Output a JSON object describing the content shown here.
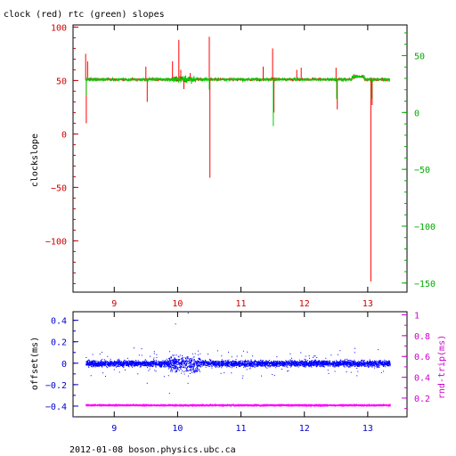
{
  "chart_data": [
    {
      "type": "line",
      "title": "clock (red) rtc (green) slopes",
      "xlabel": "",
      "ylabel_left": "clockslope",
      "ylabel_right": "",
      "xlim": [
        8.35,
        13.62
      ],
      "ylim_left": [
        -148,
        102
      ],
      "ylim_right": [
        -158,
        77
      ],
      "x_ticks": [
        9,
        10,
        11,
        12,
        13
      ],
      "y_ticks_left": [
        100,
        50,
        0,
        -50,
        -100
      ],
      "y_ticks_right": [
        50,
        0,
        -50,
        -100,
        -150
      ],
      "x_tick_color": "#cc0000",
      "left_axis_color": "#cc0000",
      "right_axis_color": "#00aa00",
      "series": [
        {
          "color": "#ff0000",
          "axis": "left",
          "baseline": 51,
          "x_range": [
            8.55,
            13.35
          ],
          "spikes": [
            {
              "x": 8.55,
              "y": 75
            },
            {
              "x": 8.56,
              "y": 10
            },
            {
              "x": 8.58,
              "y": 68
            },
            {
              "x": 9.5,
              "y": 63
            },
            {
              "x": 9.52,
              "y": 30
            },
            {
              "x": 9.92,
              "y": 68
            },
            {
              "x": 10.02,
              "y": 88
            },
            {
              "x": 10.05,
              "y": 60
            },
            {
              "x": 10.1,
              "y": 42
            },
            {
              "x": 10.2,
              "y": 57
            },
            {
              "x": 10.5,
              "y": 91
            },
            {
              "x": 10.51,
              "y": -41
            },
            {
              "x": 11.35,
              "y": 63
            },
            {
              "x": 11.5,
              "y": 80
            },
            {
              "x": 11.52,
              "y": 20
            },
            {
              "x": 11.88,
              "y": 60
            },
            {
              "x": 11.95,
              "y": 62
            },
            {
              "x": 12.5,
              "y": 62
            },
            {
              "x": 12.52,
              "y": 23
            },
            {
              "x": 12.78,
              "y": 56
            },
            {
              "x": 13.05,
              "y": -138
            },
            {
              "x": 13.07,
              "y": 27
            }
          ]
        },
        {
          "color": "#00cc00",
          "axis": "right",
          "baseline": 29,
          "x_range": [
            8.55,
            13.35
          ],
          "spikes": [
            {
              "x": 8.56,
              "y": 15
            },
            {
              "x": 11.51,
              "y": -12
            },
            {
              "x": 10.5,
              "y": 20
            },
            {
              "x": 12.51,
              "y": 12
            },
            {
              "x": 13.06,
              "y": 12
            }
          ]
        }
      ]
    },
    {
      "type": "scatter",
      "ylabel_left": "offset(ms)",
      "ylabel_right": "rnd-trip(ms)",
      "xlim": [
        8.35,
        13.62
      ],
      "ylim_left": [
        -0.5,
        0.48
      ],
      "ylim_right": [
        0.02,
        1.03
      ],
      "x_ticks": [
        9,
        10,
        11,
        12,
        13
      ],
      "y_ticks_left": [
        0.4,
        0.2,
        0,
        -0.2,
        -0.4
      ],
      "y_ticks_right": [
        0.2,
        0.4,
        0.6,
        0.8,
        1
      ],
      "x_tick_color": "#0000cc",
      "left_axis_color": "#0000cc",
      "right_axis_color": "#cc00cc",
      "series": [
        {
          "color": "#0000ff",
          "axis": "left",
          "center": 0.0,
          "spread": 0.03,
          "x_range": [
            8.55,
            13.35
          ]
        },
        {
          "color": "#ff00ff",
          "axis": "right",
          "center": 0.135,
          "spread": 0.008,
          "x_range": [
            8.55,
            13.35
          ]
        }
      ]
    }
  ],
  "footer": "2012-01-08 boson.physics.ubc.ca"
}
